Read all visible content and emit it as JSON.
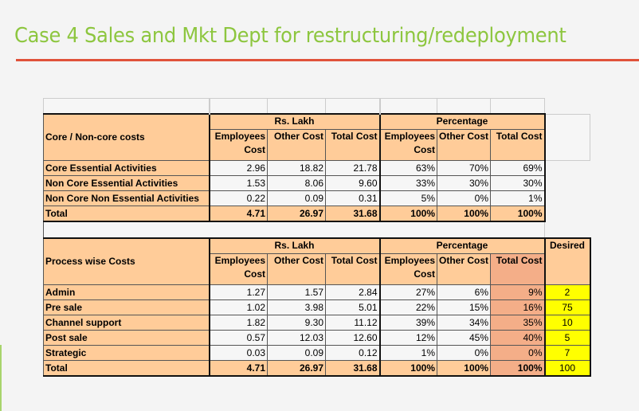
{
  "title": "Case 4  Sales and Mkt Dept for restructuring/redeployment",
  "colors": {
    "title": "#8dc63f",
    "rule": "#e0523a",
    "header_fill": "#ffcc99",
    "highlight_fill": "#f4ae88",
    "desired_fill": "#ffff00"
  },
  "table1": {
    "label_header": "Core / Non-core costs",
    "group1": "Rs. Lakh",
    "group2": "Percentage",
    "cols": [
      "Employees Cost",
      "Other Cost",
      "Total Cost",
      "Employees Cost",
      "Other Cost",
      "Total Cost"
    ],
    "rows": [
      {
        "label": "Core Essential Activities",
        "v": [
          "2.96",
          "18.82",
          "21.78",
          "63%",
          "70%",
          "69%"
        ]
      },
      {
        "label": "Non Core Essential Activities",
        "v": [
          "1.53",
          "8.06",
          "9.60",
          "33%",
          "30%",
          "30%"
        ]
      },
      {
        "label": "Non Core Non Essential Activities",
        "v": [
          "0.22",
          "0.09",
          "0.31",
          "5%",
          "0%",
          "1%"
        ]
      }
    ],
    "total": {
      "label": "Total",
      "v": [
        "4.71",
        "26.97",
        "31.68",
        "100%",
        "100%",
        "100%"
      ]
    }
  },
  "table2": {
    "label_header": "Process wise Costs",
    "group1": "Rs. Lakh",
    "group2": "Percentage",
    "desired_header": "Desired",
    "cols": [
      "Employees Cost",
      "Other Cost",
      "Total Cost",
      "Employees Cost",
      "Other Cost",
      "Total Cost"
    ],
    "rows": [
      {
        "label": "Admin",
        "v": [
          "1.27",
          "1.57",
          "2.84",
          "27%",
          "6%",
          "9%"
        ],
        "desired": "2"
      },
      {
        "label": "Pre sale",
        "v": [
          "1.02",
          "3.98",
          "5.01",
          "22%",
          "15%",
          "16%"
        ],
        "desired": "75"
      },
      {
        "label": "Channel support",
        "v": [
          "1.82",
          "9.30",
          "11.12",
          "39%",
          "34%",
          "35%"
        ],
        "desired": "10"
      },
      {
        "label": "Post sale",
        "v": [
          "0.57",
          "12.03",
          "12.60",
          "12%",
          "45%",
          "40%"
        ],
        "desired": "5"
      },
      {
        "label": "Strategic",
        "v": [
          "0.03",
          "0.09",
          "0.12",
          "1%",
          "0%",
          "0%"
        ],
        "desired": "7"
      }
    ],
    "total": {
      "label": "Total",
      "v": [
        "4.71",
        "26.97",
        "31.68",
        "100%",
        "100%",
        "100%"
      ],
      "desired": "100"
    }
  }
}
